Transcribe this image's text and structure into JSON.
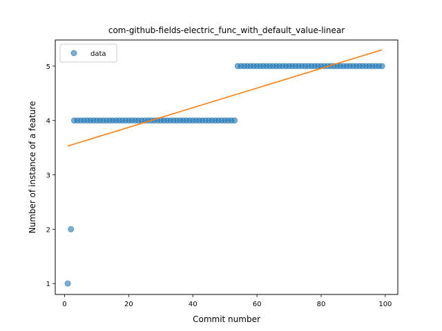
{
  "chart_data": {
    "type": "scatter",
    "title": "com-github-fields-electric_func_with_default_value-linear",
    "xlabel": "Commit number",
    "ylabel": "Number of instance of a feature",
    "xlim": [
      -2.9,
      103.9
    ],
    "ylim": [
      0.8,
      5.48
    ],
    "xticks": [
      0,
      20,
      40,
      60,
      80,
      100
    ],
    "yticks": [
      1,
      2,
      3,
      4,
      5
    ],
    "grid": false,
    "legend": {
      "position": "top-left",
      "entries": [
        "data"
      ]
    },
    "series": [
      {
        "name": "data",
        "kind": "points",
        "color": "#1f77b4",
        "x": [
          1,
          2,
          3,
          4,
          5,
          6,
          7,
          8,
          9,
          10,
          11,
          12,
          13,
          14,
          15,
          16,
          17,
          18,
          19,
          20,
          21,
          22,
          23,
          24,
          25,
          26,
          27,
          28,
          29,
          30,
          31,
          32,
          33,
          34,
          35,
          36,
          37,
          38,
          39,
          40,
          41,
          42,
          43,
          44,
          45,
          46,
          47,
          48,
          49,
          50,
          51,
          52,
          53,
          54,
          55,
          56,
          57,
          58,
          59,
          60,
          61,
          62,
          63,
          64,
          65,
          66,
          67,
          68,
          69,
          70,
          71,
          72,
          73,
          74,
          75,
          76,
          77,
          78,
          79,
          80,
          81,
          82,
          83,
          84,
          85,
          86,
          87,
          88,
          89,
          90,
          91,
          92,
          93,
          94,
          95,
          96,
          97,
          98,
          99
        ],
        "y": [
          1,
          2,
          4,
          4,
          4,
          4,
          4,
          4,
          4,
          4,
          4,
          4,
          4,
          4,
          4,
          4,
          4,
          4,
          4,
          4,
          4,
          4,
          4,
          4,
          4,
          4,
          4,
          4,
          4,
          4,
          4,
          4,
          4,
          4,
          4,
          4,
          4,
          4,
          4,
          4,
          4,
          4,
          4,
          4,
          4,
          4,
          4,
          4,
          4,
          4,
          4,
          4,
          4,
          5,
          5,
          5,
          5,
          5,
          5,
          5,
          5,
          5,
          5,
          5,
          5,
          5,
          5,
          5,
          5,
          5,
          5,
          5,
          5,
          5,
          5,
          5,
          5,
          5,
          5,
          5,
          5,
          5,
          5,
          5,
          5,
          5,
          5,
          5,
          5,
          5,
          5,
          5,
          5,
          5,
          5,
          5,
          5,
          5,
          5
        ]
      },
      {
        "kind": "line",
        "color": "#ff7f0e",
        "x": [
          1,
          99
        ],
        "y": [
          3.53,
          5.3
        ]
      }
    ]
  }
}
